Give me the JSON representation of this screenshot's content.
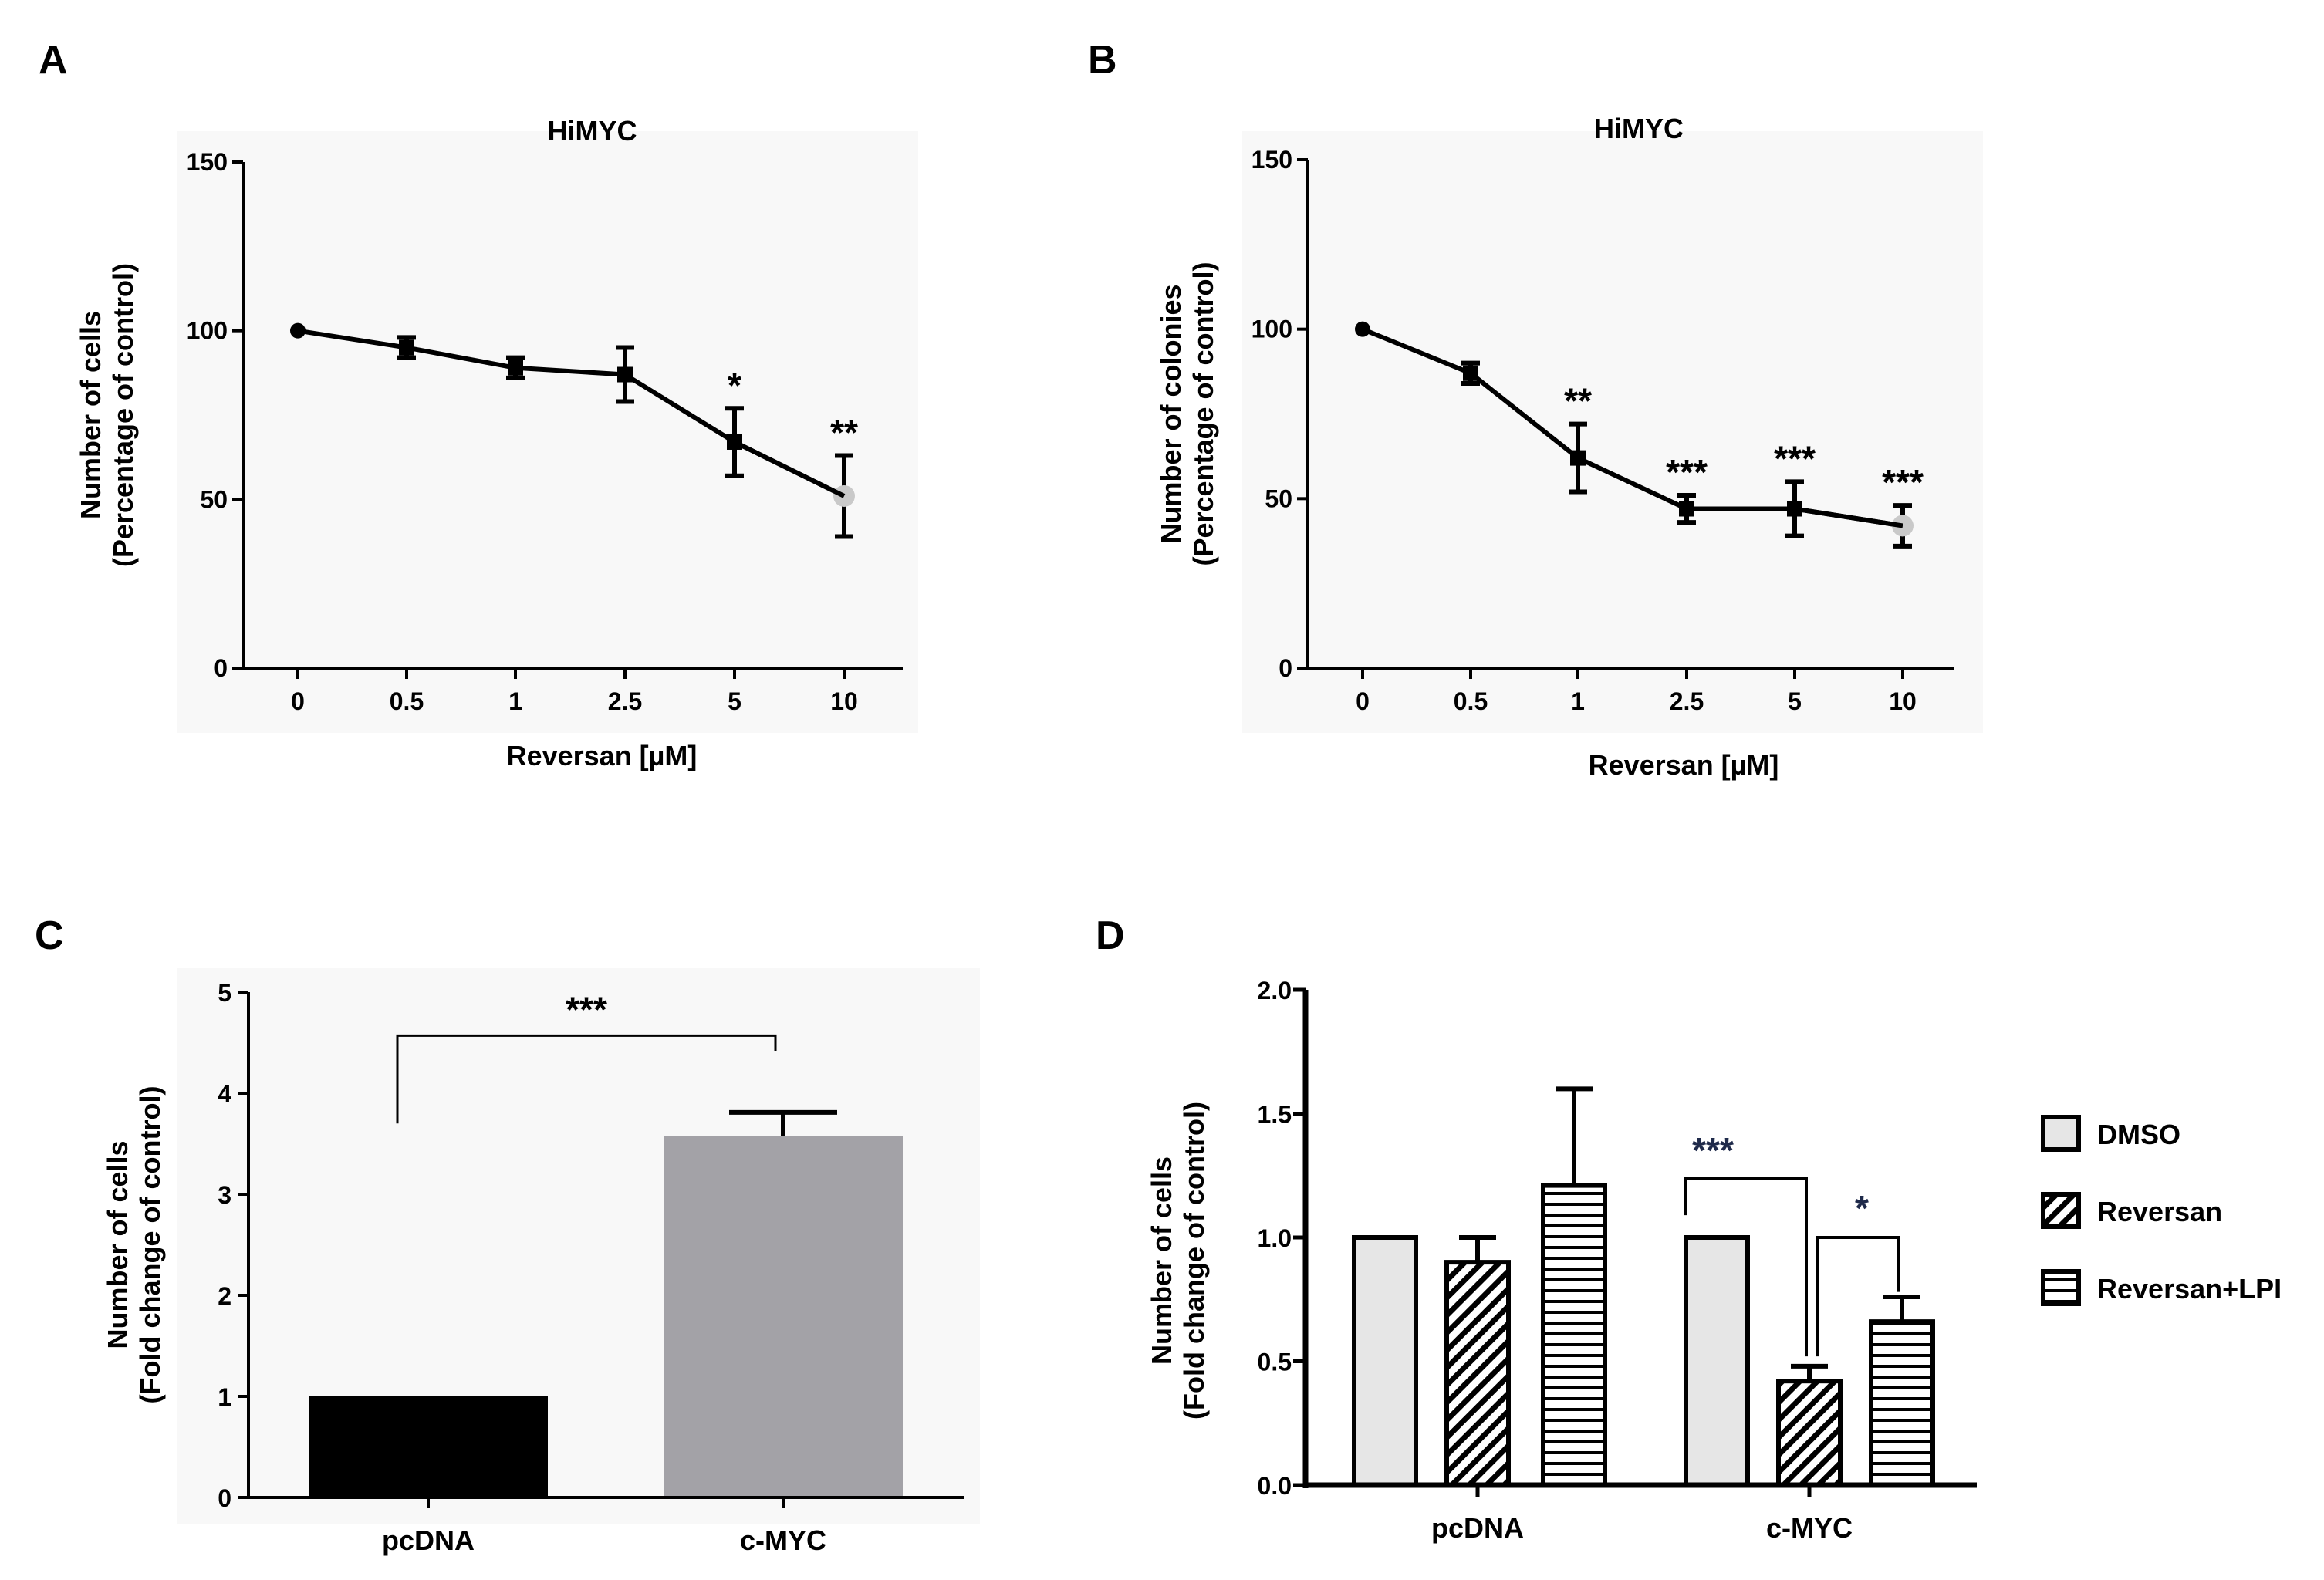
{
  "chart_data": [
    {
      "panel": "A",
      "type": "line",
      "title": "HiMYC",
      "xlabel": "Reversan [µM]",
      "ylabel": [
        "Number of cells",
        "(Percentage of control)"
      ],
      "categories": [
        "0",
        "0.5",
        "1",
        "2.5",
        "5",
        "10"
      ],
      "values": [
        100,
        95,
        89,
        87,
        67,
        51
      ],
      "errors": [
        0,
        3,
        3,
        8,
        10,
        12
      ],
      "significance": [
        "",
        "",
        "",
        "",
        "*",
        "**"
      ],
      "ylim": [
        0,
        150
      ],
      "yticks": [
        "0",
        "50",
        "100",
        "150"
      ]
    },
    {
      "panel": "B",
      "type": "line",
      "title": "HiMYC",
      "xlabel": "Reversan [µM]",
      "ylabel": [
        "Number of colonies",
        "(Percentage of control)"
      ],
      "categories": [
        "0",
        "0.5",
        "1",
        "2.5",
        "5",
        "10"
      ],
      "values": [
        100,
        87,
        62,
        47,
        47,
        42
      ],
      "errors": [
        0,
        3,
        10,
        4,
        8,
        6
      ],
      "significance": [
        "",
        "",
        "**",
        "***",
        "***",
        "***"
      ],
      "ylim": [
        0,
        150
      ],
      "yticks": [
        "0",
        "50",
        "100",
        "150"
      ]
    },
    {
      "panel": "C",
      "type": "bar",
      "xlabel": "",
      "ylabel": [
        "Number of cells",
        "(Fold change of control)"
      ],
      "categories": [
        "pcDNA",
        "c-MYC"
      ],
      "values": [
        1.0,
        3.58
      ],
      "errors": [
        0,
        0.23
      ],
      "colors": [
        "#000000",
        "#a3a2a7"
      ],
      "comparison": {
        "label": "***",
        "from": 0,
        "to": 1
      },
      "ylim": [
        0,
        5
      ],
      "yticks": [
        "0",
        "1",
        "2",
        "3",
        "4",
        "5"
      ]
    },
    {
      "panel": "D",
      "type": "bar",
      "xlabel": "",
      "ylabel": [
        "Number of cells",
        "(Fold change of control)"
      ],
      "categories": [
        "pcDNA",
        "c-MYC"
      ],
      "series": [
        {
          "name": "DMSO",
          "values": [
            1.0,
            1.0
          ],
          "errors": [
            0,
            0
          ]
        },
        {
          "name": "Reversan",
          "values": [
            0.9,
            0.42
          ],
          "errors": [
            0.1,
            0.06
          ]
        },
        {
          "name": "Reversan+LPI",
          "values": [
            1.21,
            0.66
          ],
          "errors": [
            0.39,
            0.1
          ]
        }
      ],
      "comparisons": [
        {
          "label": "***",
          "group": 1,
          "from": 0,
          "to": 1
        },
        {
          "label": "*",
          "group": 1,
          "from": 1,
          "to": 2
        }
      ],
      "ylim": [
        0,
        2.0
      ],
      "yticks": [
        "0.0",
        "0.5",
        "1.0",
        "1.5",
        "2.0"
      ]
    }
  ]
}
